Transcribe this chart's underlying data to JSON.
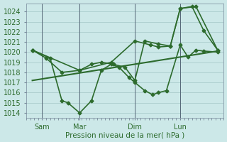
{
  "background_color": "#cce8e8",
  "plot_bg_color": "#cce8e8",
  "grid_color": "#aacccc",
  "line_color": "#2d6b2d",
  "xlabel": "Pression niveau de la mer( hPa )",
  "ylim": [
    1013.5,
    1024.8
  ],
  "yticks": [
    1014,
    1015,
    1016,
    1017,
    1018,
    1019,
    1020,
    1021,
    1022,
    1023,
    1024
  ],
  "xtick_labels": [
    "Sam",
    "Mar",
    "Dim",
    "Lun"
  ],
  "vline_positions": [
    0.08,
    0.27,
    0.55,
    0.78
  ],
  "xlim": [
    0.0,
    1.0
  ],
  "line_jagged": {
    "x": [
      0.03,
      0.12,
      0.18,
      0.21,
      0.27,
      0.33,
      0.38,
      0.43,
      0.47,
      0.52,
      0.55,
      0.6,
      0.64,
      0.67,
      0.71,
      0.78,
      0.82,
      0.86,
      0.9,
      0.97
    ],
    "y": [
      1020.2,
      1019.4,
      1015.2,
      1015.0,
      1014.0,
      1015.2,
      1018.2,
      1018.8,
      1018.5,
      1017.5,
      1017.0,
      1016.2,
      1015.8,
      1016.0,
      1016.2,
      1020.7,
      1019.5,
      1020.2,
      1020.1,
      1020.0
    ],
    "linewidth": 1.2
  },
  "line_mid": {
    "x": [
      0.03,
      0.1,
      0.18,
      0.27,
      0.33,
      0.38,
      0.44,
      0.5,
      0.55,
      0.6,
      0.67,
      0.73,
      0.78,
      0.84,
      0.9,
      0.97
    ],
    "y": [
      1020.2,
      1019.4,
      1018.0,
      1018.2,
      1018.8,
      1019.0,
      1018.8,
      1018.5,
      1017.2,
      1021.1,
      1020.8,
      1020.6,
      1024.3,
      1024.5,
      1022.1,
      1020.2
    ],
    "linewidth": 1.2
  },
  "line_top": {
    "x": [
      0.03,
      0.27,
      0.43,
      0.55,
      0.63,
      0.67,
      0.73,
      0.78,
      0.86,
      0.97
    ],
    "y": [
      1020.2,
      1018.2,
      1019.0,
      1021.1,
      1020.7,
      1020.5,
      1020.6,
      1024.3,
      1024.5,
      1020.2
    ],
    "linewidth": 1.2
  },
  "line_trend": {
    "x": [
      0.03,
      0.97
    ],
    "y": [
      1017.2,
      1020.1
    ],
    "linewidth": 1.5
  }
}
